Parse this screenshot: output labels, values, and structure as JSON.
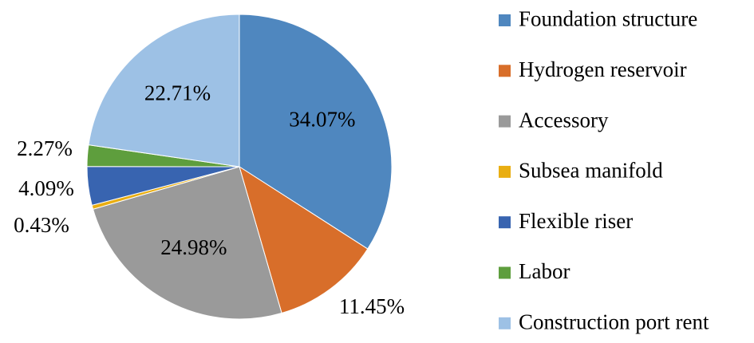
{
  "chart_data": {
    "type": "pie",
    "title": "",
    "start_angle_deg": 0,
    "direction": "clockwise",
    "legend_position": "right",
    "slices": [
      {
        "name": "Foundation structure",
        "value": 34.07,
        "label": "34.07%",
        "color": "#4F87BF",
        "label_placement": "inside"
      },
      {
        "name": "Hydrogen reservoir",
        "value": 11.45,
        "label": "11.45%",
        "color": "#D86E2A",
        "label_placement": "outside"
      },
      {
        "name": "Accessory",
        "value": 24.98,
        "label": "24.98%",
        "color": "#9A9A9A",
        "label_placement": "inside"
      },
      {
        "name": "Subsea manifold",
        "value": 0.43,
        "label": "0.43%",
        "color": "#E9AE12",
        "label_placement": "outside"
      },
      {
        "name": "Flexible riser",
        "value": 4.09,
        "label": "4.09%",
        "color": "#3864B0",
        "label_placement": "outside"
      },
      {
        "name": "Labor",
        "value": 2.27,
        "label": "2.27%",
        "color": "#5E9E3D",
        "label_placement": "outside"
      },
      {
        "name": "Construction port rent",
        "value": 22.71,
        "label": "22.71%",
        "color": "#9DC1E5",
        "label_placement": "inside"
      }
    ]
  }
}
